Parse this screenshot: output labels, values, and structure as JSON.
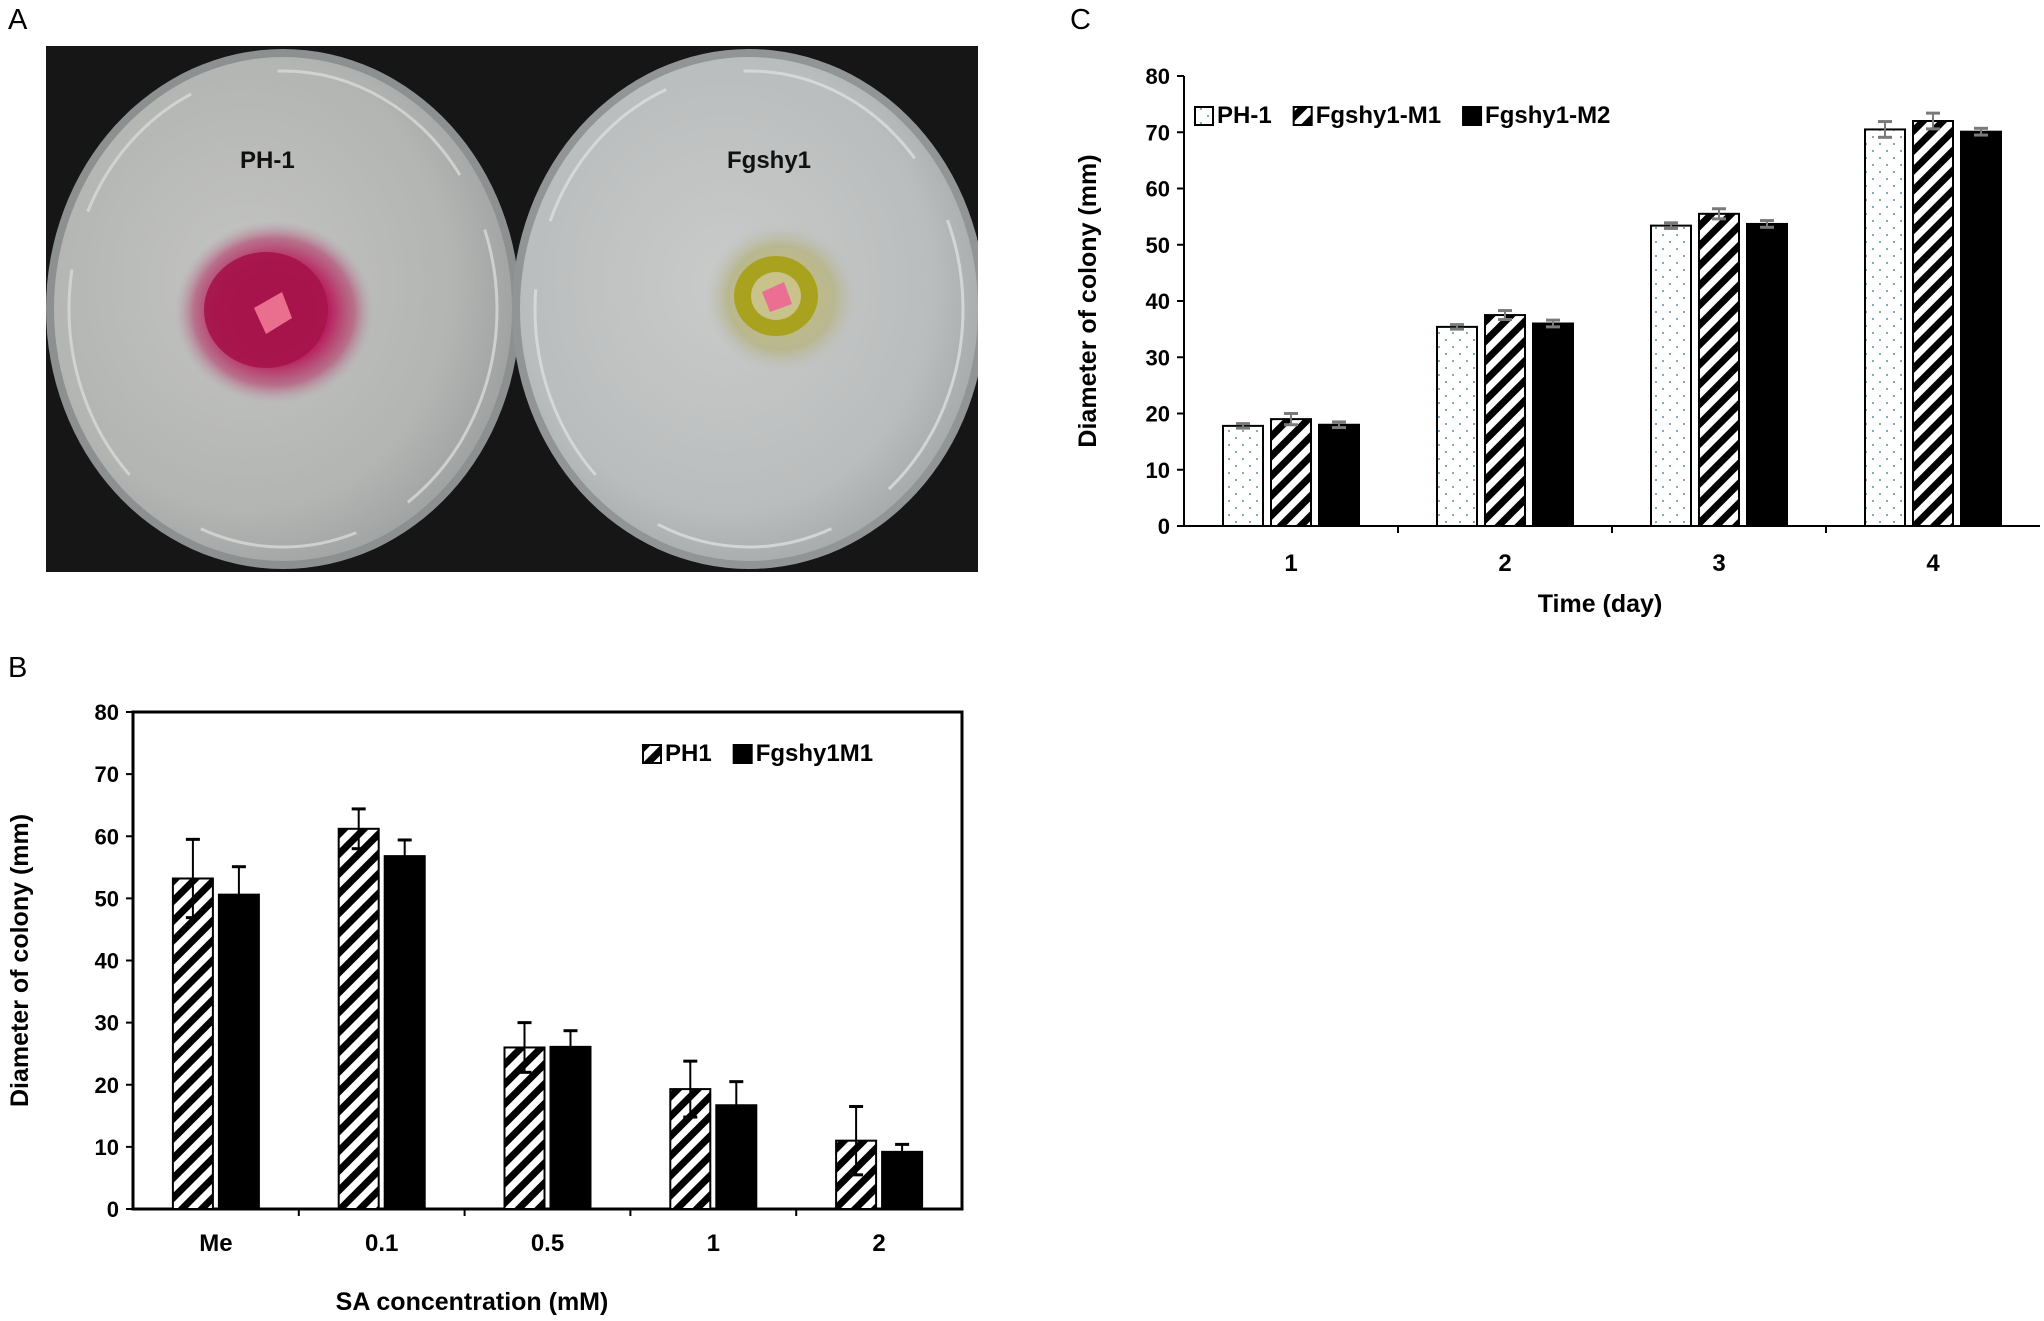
{
  "panels": {
    "a": {
      "letter": "A",
      "plate_labels": [
        "PH-1",
        "Fgshy1"
      ]
    },
    "b": {
      "letter": "B"
    },
    "c": {
      "letter": "C"
    }
  },
  "chart_data": [
    {
      "panel": "C",
      "type": "bar",
      "categories": [
        "1",
        "2",
        "3",
        "4"
      ],
      "xlabel": "Time (day)",
      "ylabel": "Diameter of colony (mm)",
      "ylim": [
        0,
        80
      ],
      "yticks": [
        0,
        10,
        20,
        30,
        40,
        50,
        60,
        70,
        80
      ],
      "grid": false,
      "legend_position": "top-left",
      "series": [
        {
          "name": "PH-1",
          "pattern": "dots",
          "values": [
            17.8,
            35.4,
            53.4,
            70.5
          ],
          "errors": [
            0.4,
            0.4,
            0.5,
            1.4
          ]
        },
        {
          "name": "Fgshy1-M1",
          "pattern": "hatch",
          "values": [
            19.0,
            37.5,
            55.5,
            72.0
          ],
          "errors": [
            1.0,
            0.8,
            0.9,
            1.4
          ]
        },
        {
          "name": "Fgshy1-M2",
          "pattern": "solid",
          "values": [
            18.0,
            36.0,
            53.7,
            70.1
          ],
          "errors": [
            0.5,
            0.6,
            0.6,
            0.6
          ]
        }
      ]
    },
    {
      "panel": "B",
      "type": "bar",
      "categories": [
        "Me",
        "0.1",
        "0.5",
        "1",
        "2"
      ],
      "xlabel": "SA concentration (mM)",
      "ylabel": "Diameter of colony (mm)",
      "ylim": [
        0,
        80
      ],
      "yticks": [
        0,
        10,
        20,
        30,
        40,
        50,
        60,
        70,
        80
      ],
      "grid": false,
      "legend_position": "top-right",
      "series": [
        {
          "name": "PH1",
          "pattern": "hatch",
          "values": [
            53.2,
            61.2,
            26.0,
            19.3,
            11.0
          ],
          "errors": [
            6.3,
            3.2,
            4.0,
            4.5,
            5.5
          ]
        },
        {
          "name": "Fgshy1M1",
          "pattern": "solid",
          "values": [
            50.6,
            56.8,
            26.1,
            16.7,
            9.2
          ],
          "errors": [
            4.5,
            2.6,
            2.6,
            3.8,
            1.2
          ]
        }
      ]
    }
  ]
}
